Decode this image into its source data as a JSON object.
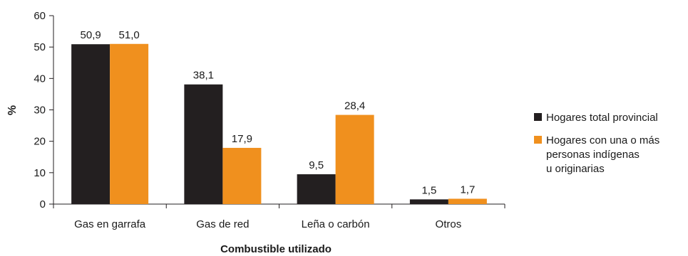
{
  "chart_data": {
    "type": "bar",
    "xlabel": "Combustible utilizado",
    "ylabel": "%",
    "ylim": [
      0,
      60
    ],
    "yticks": [
      "0",
      "10",
      "20",
      "30",
      "40",
      "50",
      "60"
    ],
    "categories": [
      "Gas en garrafa",
      "Gas de red",
      "Leña o carbón",
      "Otros"
    ],
    "series": [
      {
        "name": "Hogares total provincial",
        "name_lines": [
          "Hogares total provincial"
        ],
        "color": "#231f20",
        "values": [
          50.9,
          38.1,
          9.5,
          1.5
        ],
        "labels": [
          "50,9",
          "38,1",
          "9,5",
          "1,5"
        ]
      },
      {
        "name": "Hogares con una o más personas indígenas u originarias",
        "name_lines": [
          "Hogares con una o más",
          "personas indígenas",
          "u originarias"
        ],
        "color": "#f0901e",
        "values": [
          51.0,
          17.9,
          28.4,
          1.7
        ],
        "labels": [
          "51,0",
          "17,9",
          "28,4",
          "1,7"
        ]
      }
    ],
    "grid": false,
    "legend_position": "right"
  }
}
